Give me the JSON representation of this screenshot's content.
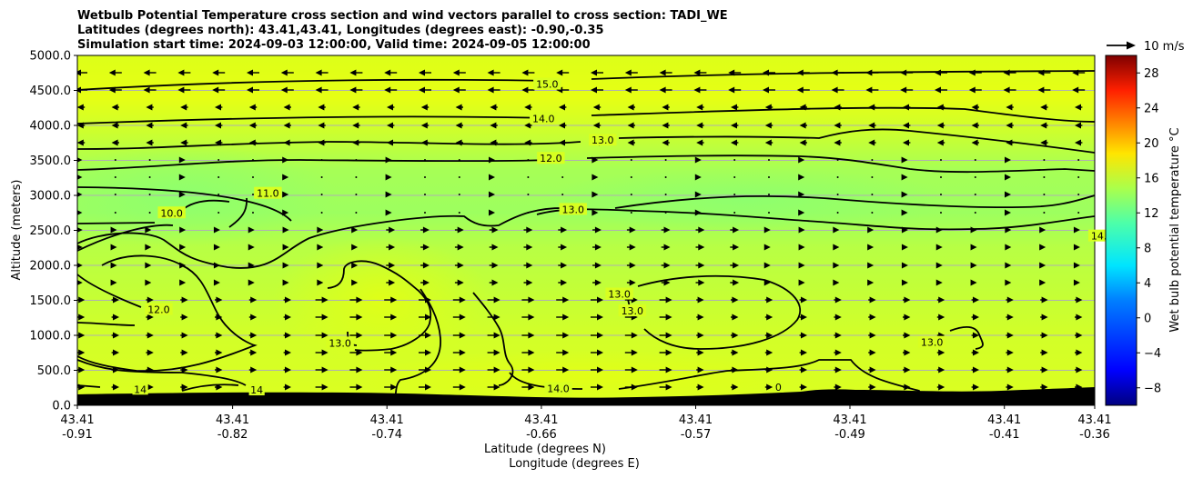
{
  "chart_data": {
    "type": "contour cross-section",
    "title_lines": [
      "Wetbulb Potential Temperature cross section and wind vectors parallel to cross section: TADI_WE",
      "Latitudes (degrees north): 43.41,43.41, Longitudes (degrees east): -0.90,-0.35",
      "Simulation start time: 2024-09-03 12:00:00, Valid time: 2024-09-05 12:00:00"
    ],
    "ylabel": "Altitude (meters)",
    "xlabel_lat": "Latitude (degrees N)",
    "xlabel_lon": "Longitude (degrees E)",
    "ylim": [
      0,
      5000
    ],
    "y_ticks": [
      "0.0",
      "500.0",
      "1000.0",
      "1500.0",
      "2000.0",
      "2500.0",
      "3000.0",
      "3500.0",
      "4000.0",
      "4500.0",
      "5000.0"
    ],
    "y_tick_values": [
      0,
      500,
      1000,
      1500,
      2000,
      2500,
      3000,
      3500,
      4000,
      4500,
      5000
    ],
    "x_ticks_lat": [
      "43.41",
      "43.41",
      "43.41",
      "43.41",
      "43.41",
      "43.41",
      "43.41",
      "43.41"
    ],
    "x_ticks_lon": [
      "-0.91",
      "-0.82",
      "-0.74",
      "-0.66",
      "-0.57",
      "-0.49",
      "-0.41",
      "-0.36"
    ],
    "x_tick_positions": [
      0,
      0.1526,
      0.3043,
      0.4561,
      0.6078,
      0.7594,
      0.9112,
      1
    ],
    "colorbar": {
      "label": "Wet bulb potential temperature °C",
      "min": -10,
      "max": 30,
      "ticks": [
        "−8",
        "−4",
        "0",
        "4",
        "8",
        "12",
        "16",
        "20",
        "24",
        "28"
      ],
      "tick_values": [
        -8,
        -4,
        0,
        4,
        8,
        12,
        16,
        20,
        24,
        28
      ]
    },
    "wind_key_label": "10 m/s",
    "contour_labels": [
      {
        "text": "15.0",
        "lon": -0.656,
        "alt": 4590
      },
      {
        "text": "14.0",
        "lon": -0.658,
        "alt": 4100
      },
      {
        "text": "13.0",
        "lon": -0.626,
        "alt": 3790
      },
      {
        "text": "12.0",
        "lon": -0.654,
        "alt": 3530
      },
      {
        "text": "11.0",
        "lon": -0.807,
        "alt": 3030
      },
      {
        "text": "10.0",
        "lon": -0.859,
        "alt": 2750
      },
      {
        "text": "13.0",
        "lon": -0.642,
        "alt": 2800
      },
      {
        "text": "14.0",
        "lon": -0.356,
        "alt": 2420
      },
      {
        "text": "12.0",
        "lon": -0.866,
        "alt": 1370
      },
      {
        "text": "13.0",
        "lon": -0.768,
        "alt": 890
      },
      {
        "text": "13.0",
        "lon": -0.617,
        "alt": 1590
      },
      {
        "text": "13.0",
        "lon": -0.61,
        "alt": 1350
      },
      {
        "text": "13.0",
        "lon": -0.448,
        "alt": 900
      },
      {
        "text": "14.0",
        "lon": -0.65,
        "alt": 240
      },
      {
        "text": "14",
        "lon": -0.876,
        "alt": 230
      },
      {
        "text": "14",
        "lon": -0.813,
        "alt": 220
      },
      {
        "text": "0",
        "lon": -0.531,
        "alt": 260
      }
    ]
  }
}
